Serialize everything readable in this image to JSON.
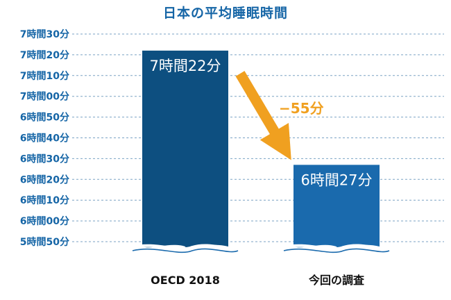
{
  "chart_data": {
    "type": "bar",
    "title": "日本の平均睡眠時間",
    "xlabel": "",
    "ylabel": "",
    "unit": "minutes",
    "y_axis_break": "wavy break below 5時間50分",
    "grid": "dashed horizontal",
    "ylim": [
      350,
      450
    ],
    "yticks": [
      {
        "value": 350,
        "label": "5時間50分"
      },
      {
        "value": 360,
        "label": "6時間00分"
      },
      {
        "value": 370,
        "label": "6時間10分"
      },
      {
        "value": 380,
        "label": "6時間20分"
      },
      {
        "value": 390,
        "label": "6時間30分"
      },
      {
        "value": 400,
        "label": "6時間40分"
      },
      {
        "value": 410,
        "label": "6時間50分"
      },
      {
        "value": 420,
        "label": "7時間00分"
      },
      {
        "value": 430,
        "label": "7時間10分"
      },
      {
        "value": 440,
        "label": "7時間20分"
      },
      {
        "value": 450,
        "label": "7時間30分"
      }
    ],
    "categories": [
      "OECD 2018",
      "今回の調査"
    ],
    "values": [
      442,
      387
    ],
    "data_labels": [
      "7時間22分",
      "6時間27分"
    ],
    "bar_colors": [
      "#0d4f80",
      "#1a6aad"
    ],
    "annotation": {
      "text": "−55分",
      "color": "#f0a020",
      "from": "OECD 2018",
      "to": "今回の調査"
    }
  },
  "colors": {
    "title": "#1565a6",
    "axis_text": "#1565a6",
    "grid": "#7aa2c4"
  }
}
